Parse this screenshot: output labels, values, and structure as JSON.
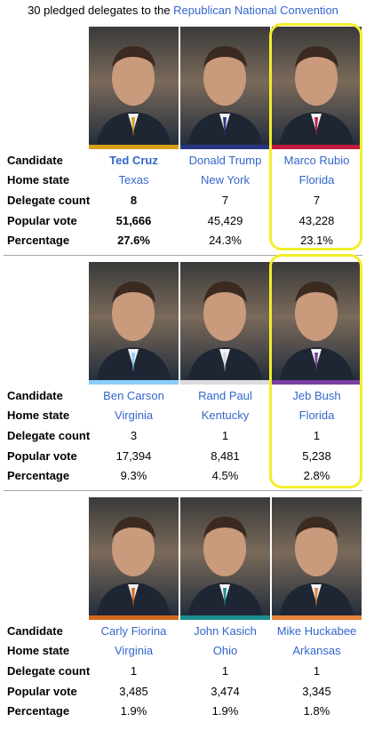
{
  "caption": {
    "prefix": "30 pledged delegates to the ",
    "link": "Republican National Convention"
  },
  "row_labels": {
    "candidate": "Candidate",
    "home_state": "Home state",
    "delegate_count": "Delegate count",
    "popular_vote": "Popular vote",
    "percentage": "Percentage"
  },
  "sections": [
    {
      "candidates": [
        {
          "name": "Ted Cruz",
          "state": "Texas",
          "delegates": "8",
          "votes": "51,666",
          "percent": "27.6%",
          "color": "#d4a017",
          "winner": true
        },
        {
          "name": "Donald Trump",
          "state": "New York",
          "delegates": "7",
          "votes": "45,429",
          "percent": "24.3%",
          "color": "#283681",
          "winner": false
        },
        {
          "name": "Marco Rubio",
          "state": "Florida",
          "delegates": "7",
          "votes": "43,228",
          "percent": "23.1%",
          "color": "#c21b40",
          "winner": false
        }
      ]
    },
    {
      "candidates": [
        {
          "name": "Ben Carson",
          "state": "Virginia",
          "delegates": "3",
          "votes": "17,394",
          "percent": "9.3%",
          "color": "#87cefa",
          "winner": false
        },
        {
          "name": "Rand Paul",
          "state": "Kentucky",
          "delegates": "1",
          "votes": "8,481",
          "percent": "4.5%",
          "color": "#dcdcdc",
          "winner": false
        },
        {
          "name": "Jeb Bush",
          "state": "Florida",
          "delegates": "1",
          "votes": "5,238",
          "percent": "2.8%",
          "color": "#7a3fa0",
          "winner": false
        }
      ]
    },
    {
      "candidates": [
        {
          "name": "Carly Fiorina",
          "state": "Virginia",
          "delegates": "1",
          "votes": "3,485",
          "percent": "1.9%",
          "color": "#d2691e",
          "winner": false
        },
        {
          "name": "John Kasich",
          "state": "Ohio",
          "delegates": "1",
          "votes": "3,474",
          "percent": "1.9%",
          "color": "#1a8e8e",
          "winner": false
        },
        {
          "name": "Mike Huckabee",
          "state": "Arkansas",
          "delegates": "1",
          "votes": "3,345",
          "percent": "1.8%",
          "color": "#e6823c",
          "winner": false
        }
      ]
    }
  ],
  "highlights": [
    "Marco Rubio",
    "Jeb Bush"
  ],
  "colors": {
    "link": "#3366cc",
    "highlight": "#f3ee2a",
    "separator": "#a2a9b1"
  }
}
